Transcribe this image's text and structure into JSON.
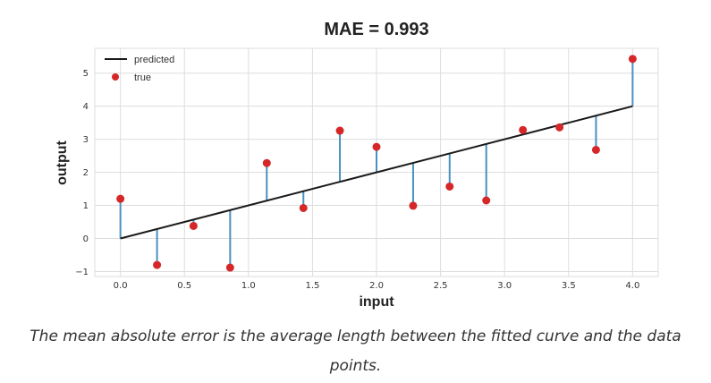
{
  "chart_data": {
    "type": "scatter",
    "title": "MAE = 0.993",
    "xlabel": "input",
    "ylabel": "output",
    "xlim": [
      -0.2,
      4.2
    ],
    "ylim": [
      -1.15,
      5.75
    ],
    "xticks": [
      0.0,
      0.5,
      1.0,
      1.5,
      2.0,
      2.5,
      3.0,
      3.5,
      4.0
    ],
    "xtick_labels": [
      "0.0",
      "0.5",
      "1.0",
      "1.5",
      "2.0",
      "2.5",
      "3.0",
      "3.5",
      "4.0"
    ],
    "yticks": [
      -1,
      0,
      1,
      2,
      3,
      4,
      5
    ],
    "ytick_labels": [
      "−1",
      "0",
      "1",
      "2",
      "3",
      "4",
      "5"
    ],
    "grid": true,
    "legend_position": "top-left",
    "colors": {
      "predicted": "#1a1a1a",
      "true": "#d62728",
      "error": "#4a90c0"
    },
    "series": [
      {
        "name": "predicted",
        "kind": "line",
        "x": [
          0.0,
          4.0
        ],
        "y": [
          0.0,
          4.0
        ]
      },
      {
        "name": "true",
        "kind": "scatter",
        "x": [
          0.0,
          0.286,
          0.571,
          0.857,
          1.143,
          1.429,
          1.714,
          2.0,
          2.286,
          2.571,
          2.857,
          3.143,
          3.429,
          3.714,
          4.0
        ],
        "y": [
          1.2,
          -0.8,
          0.38,
          -0.88,
          2.28,
          0.92,
          3.26,
          2.77,
          0.99,
          1.57,
          1.15,
          3.28,
          3.36,
          2.68,
          5.43
        ]
      }
    ]
  },
  "caption": "The mean absolute error is the average length between the fitted curve and the data points."
}
